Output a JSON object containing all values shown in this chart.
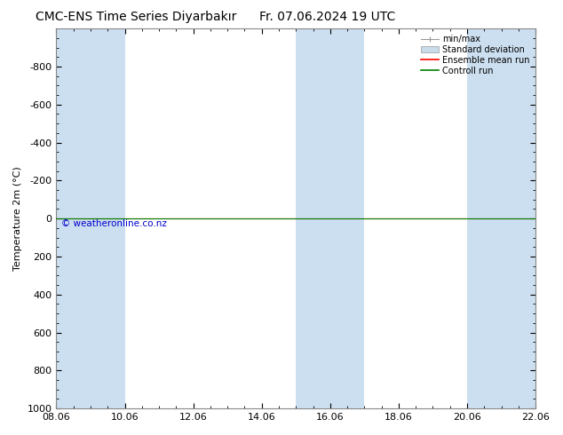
{
  "title": "CMC-ENS Time Series Diyarbakır",
  "title2": "Fr. 07.06.2024 19 UTC",
  "ylabel": "Temperature 2m (°C)",
  "ylim_bottom": 1000,
  "ylim_top": -1000,
  "yticks": [
    -800,
    -600,
    -400,
    -200,
    0,
    200,
    400,
    600,
    800,
    1000
  ],
  "xtick_labels": [
    "08.06",
    "10.06",
    "12.06",
    "14.06",
    "16.06",
    "18.06",
    "20.06",
    "22.06"
  ],
  "xtick_positions": [
    0,
    2,
    4,
    6,
    8,
    10,
    12,
    14
  ],
  "xlim": [
    0,
    14
  ],
  "bg_color": "#ffffff",
  "plot_bg_color": "#ffffff",
  "band_color": "#ccdff0",
  "band_positions": [
    0,
    1,
    7,
    8,
    12
  ],
  "band_widths": [
    1,
    1,
    1,
    1,
    2
  ],
  "green_line_color": "#008000",
  "red_line_color": "#ff0000",
  "gray_line_color": "#999999",
  "watermark": "© weatheronline.co.nz",
  "watermark_color": "#0000cc",
  "legend_labels": [
    "min/max",
    "Standard deviation",
    "Ensemble mean run",
    "Controll run"
  ],
  "legend_colors": [
    "#999999",
    "#c8dcea",
    "#ff0000",
    "#008000"
  ],
  "spine_color": "#888888",
  "title_fontsize": 10,
  "tick_fontsize": 8,
  "ylabel_fontsize": 8
}
